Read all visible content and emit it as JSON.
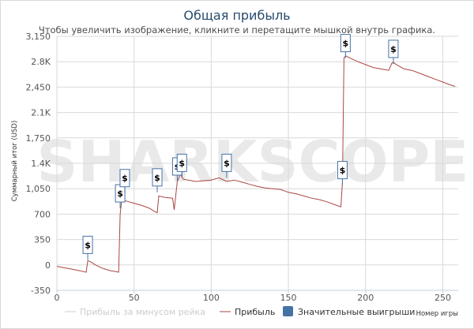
{
  "chart_data": {
    "type": "line",
    "title": "Общая прибыль",
    "subtitle": "Чтобы увеличить изображение, кликните и перетащите мышкой внутрь графика.",
    "xlabel": "Номер игры",
    "ylabel": "Суммарный итог (USD)",
    "xlim": [
      0,
      260
    ],
    "ylim": [
      -350,
      3150
    ],
    "x_ticks": [
      "0",
      "50",
      "100",
      "150",
      "200",
      "250"
    ],
    "x_tick_values": [
      0,
      50,
      100,
      150,
      200,
      250
    ],
    "y_ticks": [
      "-350",
      "0",
      "350",
      "700",
      "1,050",
      "1.4K",
      "1,750",
      "2.1K",
      "2,450",
      "2.8K",
      "3,150"
    ],
    "y_tick_values": [
      -350,
      0,
      350,
      700,
      1050,
      1400,
      1750,
      2100,
      2450,
      2800,
      3150
    ],
    "grid": true,
    "legend_position": "bottom",
    "series": [
      {
        "name": "Прибыль за минусом рейка",
        "color": "#cccccc",
        "x": [],
        "y": []
      },
      {
        "name": "Прибыль",
        "color": "#aa4643",
        "x": [
          0,
          5,
          10,
          15,
          19,
          20,
          22,
          25,
          30,
          35,
          38,
          40,
          41,
          42,
          45,
          50,
          55,
          60,
          63,
          65,
          66,
          70,
          75,
          76,
          78,
          80,
          82,
          85,
          90,
          95,
          100,
          105,
          110,
          115,
          120,
          125,
          130,
          135,
          140,
          145,
          150,
          155,
          160,
          165,
          170,
          175,
          180,
          184,
          185,
          186,
          187,
          190,
          195,
          200,
          205,
          210,
          215,
          217,
          218,
          220,
          225,
          230,
          235,
          240,
          245,
          250,
          255,
          258
        ],
        "y": [
          -20,
          -40,
          -60,
          -80,
          -100,
          60,
          40,
          0,
          -50,
          -80,
          -90,
          -100,
          700,
          900,
          880,
          850,
          820,
          780,
          740,
          720,
          950,
          930,
          920,
          760,
          1150,
          1250,
          1180,
          1170,
          1150,
          1160,
          1170,
          1200,
          1150,
          1170,
          1140,
          1110,
          1080,
          1060,
          1050,
          1040,
          1000,
          980,
          950,
          920,
          900,
          870,
          830,
          800,
          1150,
          2850,
          2880,
          2850,
          2800,
          2760,
          2720,
          2700,
          2680,
          2780,
          2790,
          2760,
          2700,
          2680,
          2640,
          2600,
          2560,
          2520,
          2480,
          2460
        ]
      }
    ],
    "significant_wins": {
      "name": "Значительные выигрыши",
      "color": "#4572a7",
      "label": "$",
      "x": [
        20,
        41,
        44,
        65,
        78,
        81,
        110,
        185,
        187,
        218
      ],
      "y": [
        70,
        780,
        990,
        1000,
        1150,
        1200,
        1200,
        1100,
        2850,
        2770
      ]
    },
    "watermark": "SHARKSCOPE"
  }
}
